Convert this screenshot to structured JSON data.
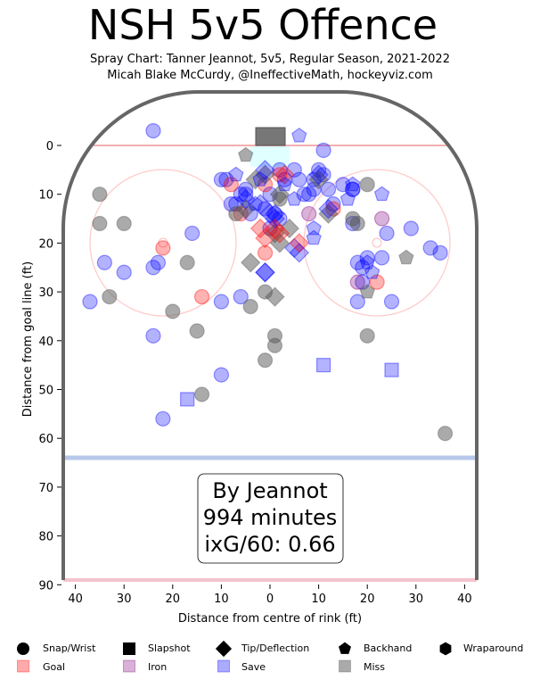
{
  "chart_data": {
    "type": "scatter",
    "title": "NSH 5v5 Offence",
    "subtitle_1": "Spray Chart: Tanner Jeannot, 5v5, Regular Season, 2021-2022",
    "subtitle_2": "Micah Blake McCurdy, @IneffectiveMath, hockeyviz.com",
    "xlabel": "Distance from centre of rink (ft)",
    "ylabel": "Distance from goal line (ft)",
    "xlim": [
      -42.5,
      42.5
    ],
    "ylim": [
      90,
      -11
    ],
    "xticks": [
      {
        "v": -40,
        "label": "40"
      },
      {
        "v": -30,
        "label": "30"
      },
      {
        "v": -20,
        "label": "20"
      },
      {
        "v": -10,
        "label": "10"
      },
      {
        "v": 0,
        "label": "0"
      },
      {
        "v": 10,
        "label": "10"
      },
      {
        "v": 20,
        "label": "20"
      },
      {
        "v": 30,
        "label": "30"
      },
      {
        "v": 40,
        "label": "40"
      }
    ],
    "yticks": [
      {
        "v": 0,
        "label": "0"
      },
      {
        "v": 10,
        "label": "10"
      },
      {
        "v": 20,
        "label": "20"
      },
      {
        "v": 30,
        "label": "30"
      },
      {
        "v": 40,
        "label": "40"
      },
      {
        "v": 50,
        "label": "50"
      },
      {
        "v": 60,
        "label": "60"
      },
      {
        "v": 70,
        "label": "70"
      },
      {
        "v": 80,
        "label": "80"
      },
      {
        "v": 90,
        "label": "90"
      }
    ],
    "annotation": {
      "line1": "By Jeannot",
      "line2": "994 minutes",
      "line3": "ixG/60: 0.66"
    },
    "colors": {
      "goal": "#ff0000",
      "iron": "#800080",
      "save": "#0000ff",
      "miss": "#555555"
    },
    "legend": {
      "placement": "bottom",
      "shot_types": [
        {
          "key": "snap",
          "label": "Snap/Wrist"
        },
        {
          "key": "slap",
          "label": "Slapshot"
        },
        {
          "key": "tip",
          "label": "Tip/Deflection"
        },
        {
          "key": "back",
          "label": "Backhand"
        },
        {
          "key": "wrap",
          "label": "Wraparound"
        }
      ],
      "outcomes": [
        {
          "key": "goal",
          "label": "Goal",
          "color": "#ffaaaa"
        },
        {
          "key": "iron",
          "label": "Iron",
          "color": "#d8b0d8"
        },
        {
          "key": "save",
          "label": "Save",
          "color": "#aaaaff"
        },
        {
          "key": "miss",
          "label": "Miss",
          "color": "#aaaaaa"
        }
      ]
    },
    "points": [
      [
        -24,
        -3,
        "snap",
        "save"
      ],
      [
        11,
        1,
        "snap",
        "save"
      ],
      [
        -37,
        32,
        "snap",
        "save"
      ],
      [
        -34,
        24,
        "snap",
        "save"
      ],
      [
        -30,
        26,
        "snap",
        "save"
      ],
      [
        -24,
        25,
        "snap",
        "save"
      ],
      [
        -23,
        24,
        "snap",
        "save"
      ],
      [
        -16,
        18,
        "snap",
        "save"
      ],
      [
        -24,
        39,
        "snap",
        "save"
      ],
      [
        -10,
        32,
        "snap",
        "save"
      ],
      [
        -10,
        47,
        "snap",
        "save"
      ],
      [
        -22,
        56,
        "snap",
        "save"
      ],
      [
        -6,
        31,
        "snap",
        "save"
      ],
      [
        -10,
        7,
        "snap",
        "save"
      ],
      [
        -9,
        7,
        "snap",
        "save"
      ],
      [
        -5,
        9,
        "snap",
        "save"
      ],
      [
        7,
        10,
        "snap",
        "save"
      ],
      [
        8,
        10,
        "snap",
        "save"
      ],
      [
        10,
        5,
        "snap",
        "save"
      ],
      [
        11,
        6,
        "snap",
        "save"
      ],
      [
        9,
        7,
        "snap",
        "save"
      ],
      [
        12,
        9,
        "snap",
        "save"
      ],
      [
        15,
        8,
        "snap",
        "save"
      ],
      [
        17,
        9,
        "snap",
        "save"
      ],
      [
        17,
        9,
        "snap",
        "save"
      ],
      [
        17,
        16,
        "snap",
        "save"
      ],
      [
        18,
        24,
        "snap",
        "save"
      ],
      [
        19,
        25,
        "snap",
        "save"
      ],
      [
        19,
        28,
        "snap",
        "save"
      ],
      [
        18,
        32,
        "snap",
        "save"
      ],
      [
        23,
        23,
        "snap",
        "save"
      ],
      [
        20,
        23,
        "snap",
        "save"
      ],
      [
        24,
        18,
        "snap",
        "save"
      ],
      [
        29,
        17,
        "snap",
        "save"
      ],
      [
        33,
        21,
        "snap",
        "save"
      ],
      [
        35,
        22,
        "snap",
        "save"
      ],
      [
        25,
        32,
        "snap",
        "save"
      ],
      [
        5,
        5,
        "snap",
        "save"
      ],
      [
        2,
        5,
        "snap",
        "save"
      ],
      [
        3,
        7,
        "snap",
        "save"
      ],
      [
        6,
        7,
        "snap",
        "save"
      ],
      [
        -8,
        12,
        "snap",
        "save"
      ],
      [
        -7,
        12,
        "snap",
        "save"
      ],
      [
        -5,
        10,
        "snap",
        "save"
      ],
      [
        -4,
        14,
        "snap",
        "save"
      ],
      [
        1,
        14,
        "snap",
        "save"
      ],
      [
        2,
        15,
        "snap",
        "save"
      ],
      [
        0,
        10,
        "snap",
        "save"
      ],
      [
        -1,
        13,
        "snap",
        "save"
      ],
      [
        0,
        17,
        "snap",
        "save"
      ],
      [
        13,
        12,
        "snap",
        "save"
      ],
      [
        -6,
        10,
        "snap",
        "save"
      ],
      [
        9,
        9,
        "snap",
        "save"
      ],
      [
        -22,
        21,
        "snap",
        "goal"
      ],
      [
        -14,
        31,
        "snap",
        "goal"
      ],
      [
        -1,
        22,
        "snap",
        "goal"
      ],
      [
        22,
        28,
        "snap",
        "goal"
      ],
      [
        13,
        13,
        "snap",
        "goal"
      ],
      [
        -6,
        14,
        "snap",
        "goal"
      ],
      [
        -1,
        8,
        "snap",
        "goal"
      ],
      [
        2,
        6,
        "snap",
        "goal"
      ],
      [
        -8,
        8,
        "snap",
        "goal"
      ],
      [
        23,
        15,
        "snap",
        "iron"
      ],
      [
        8,
        14,
        "snap",
        "iron"
      ],
      [
        18,
        28,
        "snap",
        "iron"
      ],
      [
        -35,
        10,
        "snap",
        "miss"
      ],
      [
        -35,
        16,
        "snap",
        "miss"
      ],
      [
        -30,
        16,
        "snap",
        "miss"
      ],
      [
        -33,
        31,
        "snap",
        "miss"
      ],
      [
        -20,
        34,
        "snap",
        "miss"
      ],
      [
        -17,
        24,
        "snap",
        "miss"
      ],
      [
        -15,
        38,
        "snap",
        "miss"
      ],
      [
        -14,
        51,
        "snap",
        "miss"
      ],
      [
        -4,
        33,
        "snap",
        "miss"
      ],
      [
        -1,
        30,
        "snap",
        "miss"
      ],
      [
        -1,
        44,
        "snap",
        "miss"
      ],
      [
        1,
        39,
        "snap",
        "miss"
      ],
      [
        1,
        41,
        "snap",
        "miss"
      ],
      [
        20,
        39,
        "snap",
        "miss"
      ],
      [
        36,
        59,
        "snap",
        "miss"
      ],
      [
        20,
        8,
        "snap",
        "miss"
      ],
      [
        17,
        15,
        "snap",
        "miss"
      ],
      [
        18,
        16,
        "snap",
        "miss"
      ],
      [
        -7,
        14,
        "snap",
        "miss"
      ],
      [
        2,
        11,
        "snap",
        "miss"
      ],
      [
        -17,
        52,
        "slap",
        "save"
      ],
      [
        11,
        45,
        "slap",
        "save"
      ],
      [
        25,
        46,
        "slap",
        "save"
      ],
      [
        -4,
        24,
        "tip",
        "miss"
      ],
      [
        1,
        31,
        "tip",
        "miss"
      ],
      [
        -1,
        6,
        "tip",
        "miss"
      ],
      [
        4,
        17,
        "tip",
        "miss"
      ],
      [
        2,
        20,
        "tip",
        "miss"
      ],
      [
        1,
        18,
        "tip",
        "miss"
      ],
      [
        2,
        10,
        "tip",
        "miss"
      ],
      [
        10,
        7,
        "tip",
        "miss"
      ],
      [
        12,
        14,
        "tip",
        "miss"
      ],
      [
        -5,
        13,
        "tip",
        "miss"
      ],
      [
        -3,
        7,
        "tip",
        "miss"
      ],
      [
        -1,
        5,
        "tip",
        "save"
      ],
      [
        -1,
        26,
        "tip",
        "save"
      ],
      [
        -1,
        26,
        "tip",
        "save"
      ],
      [
        6,
        22,
        "tip",
        "save"
      ],
      [
        12,
        13,
        "tip",
        "save"
      ],
      [
        -5,
        11,
        "tip",
        "save"
      ],
      [
        -2,
        12,
        "tip",
        "save"
      ],
      [
        1,
        14,
        "tip",
        "save"
      ],
      [
        0,
        14,
        "tip",
        "save"
      ],
      [
        1,
        15,
        "tip",
        "save"
      ],
      [
        5,
        21,
        "tip",
        "save"
      ],
      [
        10,
        6,
        "tip",
        "save"
      ],
      [
        -2,
        17,
        "tip",
        "goal"
      ],
      [
        -1,
        19,
        "tip",
        "goal"
      ],
      [
        1,
        17,
        "tip",
        "goal"
      ],
      [
        2,
        18,
        "tip",
        "goal"
      ],
      [
        6,
        20,
        "tip",
        "goal"
      ],
      [
        3,
        6,
        "tip",
        "goal"
      ],
      [
        -5,
        2,
        "back",
        "miss"
      ],
      [
        28,
        23,
        "back",
        "miss"
      ],
      [
        20,
        30,
        "back",
        "miss"
      ],
      [
        6,
        -2,
        "back",
        "save"
      ],
      [
        -7,
        6,
        "back",
        "save"
      ],
      [
        -2,
        7,
        "back",
        "save"
      ],
      [
        3,
        8,
        "back",
        "save"
      ],
      [
        5,
        11,
        "back",
        "save"
      ],
      [
        9,
        17,
        "back",
        "save"
      ],
      [
        9,
        19,
        "back",
        "save"
      ],
      [
        16,
        11,
        "back",
        "save"
      ],
      [
        17,
        8,
        "back",
        "save"
      ],
      [
        23,
        10,
        "back",
        "save"
      ],
      [
        21,
        26,
        "back",
        "save"
      ],
      [
        20,
        24,
        "back",
        "save"
      ],
      [
        -3,
        12,
        "back",
        "save"
      ]
    ]
  }
}
